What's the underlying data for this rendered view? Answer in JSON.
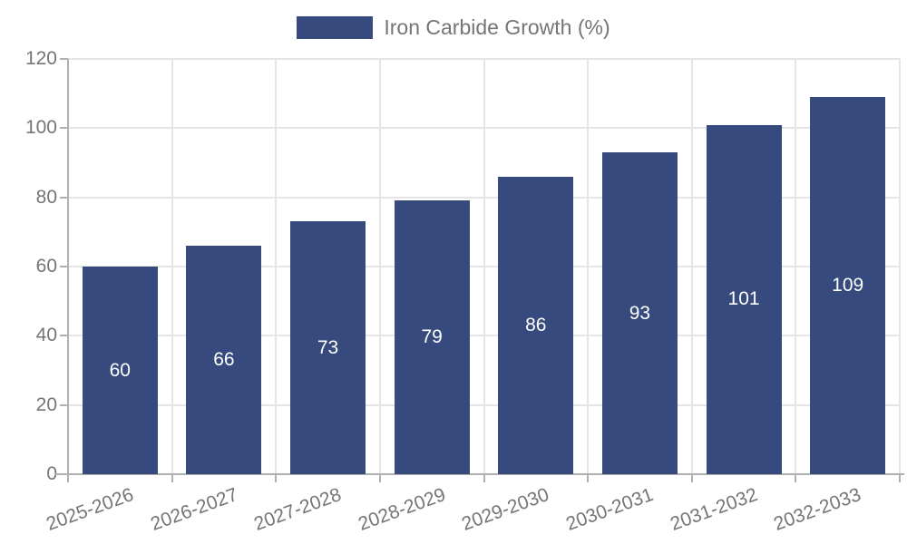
{
  "chart_data": {
    "type": "bar",
    "title": "Iron Carbide Growth (%)",
    "legend_label": "Iron Carbide Growth (%)",
    "legend_position": "top",
    "categories": [
      "2025-2026",
      "2026-2027",
      "2027-2028",
      "2028-2029",
      "2029-2030",
      "2030-2031",
      "2031-2032",
      "2032-2033"
    ],
    "values": [
      60,
      66,
      73,
      79,
      86,
      93,
      101,
      109
    ],
    "xlabel": "",
    "ylabel": "",
    "ylim": [
      0,
      120
    ],
    "yticks": [
      0,
      20,
      40,
      60,
      80,
      100,
      120
    ],
    "grid": true,
    "value_labels_shown": true,
    "colors": {
      "bar": "#364a7e",
      "value_label": "#ffffff",
      "grid": "#e5e5e5",
      "axis": "#b0b0b0",
      "tick_label": "#757575",
      "legend_text": "#757575",
      "background": "#ffffff"
    }
  }
}
